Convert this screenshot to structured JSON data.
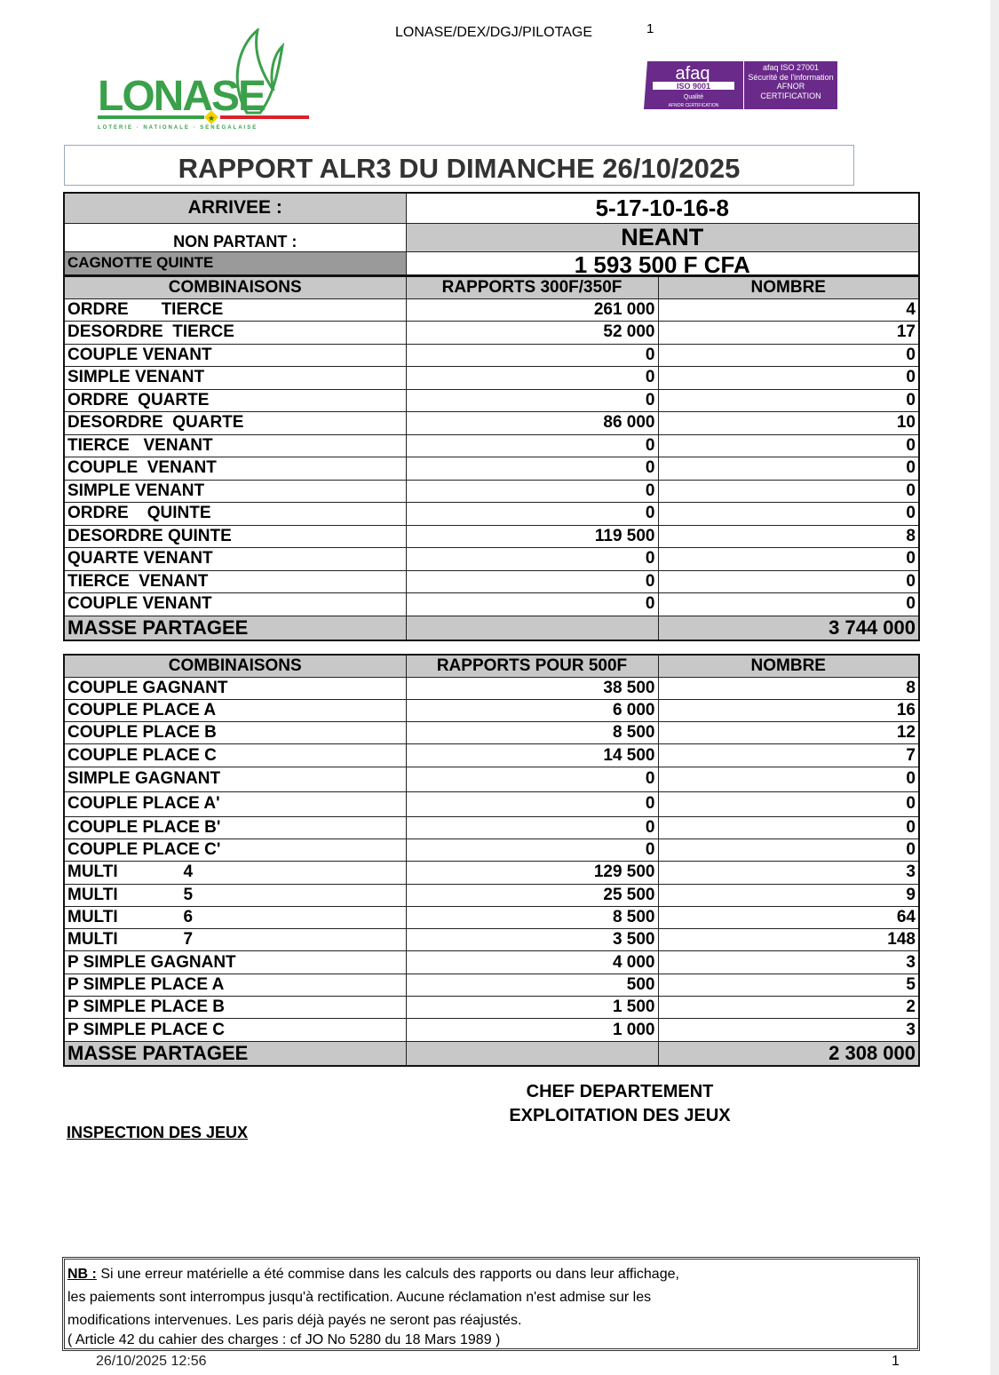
{
  "header": {
    "reference": "LONASE/DEX/DGJ/PILOTAGE",
    "page_number": "1",
    "logo_text": "LONASE",
    "logo_subtitle": "LOTERIE · NATIONALE · SENEGALAISE",
    "cert_logo_1": "afaq ISO 9001 Qualité AFNOR CERTIFICATION",
    "cert_logo_2": "afaq ISO 27001 Sécurité de l'information AFNOR CERTIFICATION"
  },
  "title": "RAPPORT ALR3 DU DIMANCHE 26/10/2025",
  "summary": {
    "arrivee_label": "ARRIVEE :",
    "arrivee_value": "5-17-10-16-8",
    "non_partant_label": "NON PARTANT  :",
    "non_partant_value": "NEANT",
    "cagnotte_label": "CAGNOTTE QUINTE",
    "cagnotte_value": "1 593 500 F CFA"
  },
  "table1": {
    "headers": [
      "COMBINAISONS",
      "RAPPORTS 300F/350F",
      "NOMBRE"
    ],
    "rows": [
      [
        "ORDRE       TIERCE",
        "261 000",
        "4"
      ],
      [
        "DESORDRE  TIERCE",
        "52 000",
        "17"
      ],
      [
        "COUPLE VENANT",
        "0",
        "0"
      ],
      [
        "SIMPLE VENANT",
        "0",
        "0"
      ],
      [
        "ORDRE  QUARTE",
        "0",
        "0"
      ],
      [
        "DESORDRE  QUARTE",
        "86 000",
        "10"
      ],
      [
        "TIERCE   VENANT",
        "0",
        "0"
      ],
      [
        "COUPLE  VENANT",
        "0",
        "0"
      ],
      [
        "SIMPLE VENANT",
        "0",
        "0"
      ],
      [
        "ORDRE    QUINTE",
        "0",
        "0"
      ],
      [
        "DESORDRE QUINTE",
        "119 500",
        "8"
      ],
      [
        "QUARTE VENANT",
        "0",
        "0"
      ],
      [
        "TIERCE  VENANT",
        "0",
        "0"
      ],
      [
        "COUPLE VENANT",
        "0",
        "0"
      ]
    ],
    "masse_label": "MASSE  PARTAGEE",
    "masse_value": "3 744 000"
  },
  "table2": {
    "headers": [
      "COMBINAISONS",
      "RAPPORTS POUR 500F",
      "NOMBRE"
    ],
    "rows": [
      [
        "COUPLE GAGNANT",
        "38 500",
        "8"
      ],
      [
        "COUPLE PLACE A",
        "6 000",
        "16"
      ],
      [
        "COUPLE PLACE B",
        "8 500",
        "12"
      ],
      [
        "COUPLE PLACE C",
        "14 500",
        "7"
      ],
      [
        "SIMPLE GAGNANT",
        "0",
        "0"
      ],
      [
        "COUPLE PLACE A'",
        "0",
        "0"
      ],
      [
        "COUPLE PLACE B'",
        "0",
        "0"
      ],
      [
        "COUPLE PLACE C'",
        "0",
        "0"
      ],
      [
        "MULTI              4",
        "129 500",
        "3"
      ],
      [
        "MULTI              5",
        "25 500",
        "9"
      ],
      [
        "MULTI              6",
        "8 500",
        "64"
      ],
      [
        "MULTI              7",
        "3 500",
        "148"
      ],
      [
        "P SIMPLE GAGNANT",
        "4 000",
        "3"
      ],
      [
        "P SIMPLE PLACE A",
        "500",
        "5"
      ],
      [
        "P SIMPLE PLACE B",
        "1 500",
        "2"
      ],
      [
        "P SIMPLE PLACE C",
        "1 000",
        "3"
      ]
    ],
    "masse_label": "MASSE  PARTAGEE",
    "masse_value": "2 308 000"
  },
  "signatures": {
    "chef_line1": "CHEF DEPARTEMENT",
    "chef_line2": "EXPLOITATION DES JEUX",
    "inspection": "INSPECTION DES JEUX"
  },
  "note": {
    "label": "NB :",
    "line1": " Si une erreur matérielle a été commise dans les calculs des rapports ou dans leur affichage,",
    "line2": "les paiements sont interrompus jusqu'à rectification. Aucune réclamation n'est admise sur les",
    "line3": "modifications intervenues. Les paris déjà payés ne seront pas réajustés.",
    "line4": "( Article 42 du cahier des charges : cf JO No 5280 du 18 Mars 1989 )"
  },
  "footer": {
    "timestamp": "26/10/2025 12:56",
    "page": "1"
  },
  "colors": {
    "logo_green": "#3aa14a",
    "logo_red": "#d8232a",
    "afaq_purple": "#6a2a8a",
    "header_gray": "#c8c8c8"
  }
}
